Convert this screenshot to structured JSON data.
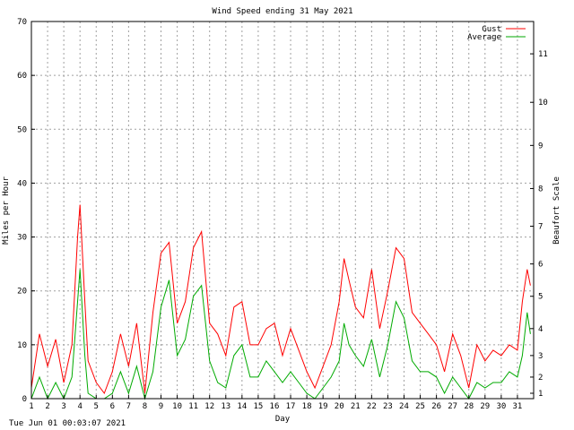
{
  "chart_data": {
    "type": "line",
    "title": "Wind Speed ending 31 May 2021",
    "xlabel": "Day",
    "ylabel": "Miles per Hour",
    "y2label": "Beaufort Scale",
    "xlim": [
      1,
      32
    ],
    "ylim": [
      0,
      70
    ],
    "grid": true,
    "legend_position": "top-right",
    "x_ticks": [
      1,
      2,
      3,
      4,
      5,
      6,
      7,
      8,
      9,
      10,
      11,
      12,
      13,
      14,
      15,
      16,
      17,
      18,
      19,
      20,
      21,
      22,
      23,
      24,
      25,
      26,
      27,
      28,
      29,
      30,
      31
    ],
    "y_ticks": [
      0,
      10,
      20,
      30,
      40,
      50,
      60,
      70
    ],
    "beaufort_ticks": [
      {
        "label": "1",
        "mph": 1
      },
      {
        "label": "2",
        "mph": 4
      },
      {
        "label": "3",
        "mph": 8
      },
      {
        "label": "4",
        "mph": 13
      },
      {
        "label": "5",
        "mph": 19
      },
      {
        "label": "6",
        "mph": 25
      },
      {
        "label": "7",
        "mph": 32
      },
      {
        "label": "8",
        "mph": 39
      },
      {
        "label": "9",
        "mph": 47
      },
      {
        "label": "10",
        "mph": 55
      },
      {
        "label": "11",
        "mph": 64
      }
    ],
    "x": [
      1,
      1.5,
      2,
      2.5,
      3,
      3.5,
      3.85,
      4,
      4.3,
      4.5,
      5,
      5.5,
      6,
      6.5,
      7,
      7.5,
      8,
      8.5,
      9,
      9.5,
      10,
      10.5,
      11,
      11.5,
      12,
      12.5,
      13,
      13.5,
      14,
      14.5,
      15,
      15.5,
      16,
      16.5,
      17,
      17.5,
      18,
      18.5,
      19,
      19.5,
      20,
      20.3,
      20.6,
      21,
      21.5,
      22,
      22.5,
      23,
      23.5,
      24,
      24.5,
      25,
      25.5,
      26,
      26.5,
      27,
      27.5,
      28,
      28.5,
      29,
      29.5,
      30,
      30.5,
      31,
      31.3,
      31.6,
      31.8
    ],
    "series": [
      {
        "name": "Gust",
        "color": "#ff0000",
        "values": [
          2,
          12,
          6,
          11,
          3,
          10,
          30,
          36,
          18,
          7,
          3,
          1,
          5,
          12,
          6,
          14,
          1,
          16,
          27,
          29,
          14,
          18,
          28,
          31,
          14,
          12,
          8,
          17,
          18,
          10,
          10,
          13,
          14,
          8,
          13,
          9,
          5,
          2,
          6,
          10,
          18,
          26,
          22,
          17,
          15,
          24,
          13,
          20,
          28,
          26,
          16,
          14,
          12,
          10,
          5,
          12,
          8,
          2,
          10,
          7,
          9,
          8,
          10,
          9,
          18,
          24,
          21
        ]
      },
      {
        "name": "Average",
        "color": "#00aa00",
        "values": [
          0,
          4,
          0,
          3,
          0,
          4,
          18,
          24,
          8,
          1,
          0,
          0,
          1,
          5,
          1,
          6,
          0,
          5,
          17,
          22,
          8,
          11,
          19,
          21,
          7,
          3,
          2,
          8,
          10,
          4,
          4,
          7,
          5,
          3,
          5,
          3,
          1,
          0,
          2,
          4,
          7,
          14,
          10,
          8,
          6,
          11,
          4,
          10,
          18,
          15,
          7,
          5,
          5,
          4,
          1,
          4,
          2,
          0,
          3,
          2,
          3,
          3,
          5,
          4,
          8,
          16,
          12
        ]
      }
    ]
  },
  "footer": {
    "timestamp": "Tue Jun 01 00:03:07 2021"
  }
}
